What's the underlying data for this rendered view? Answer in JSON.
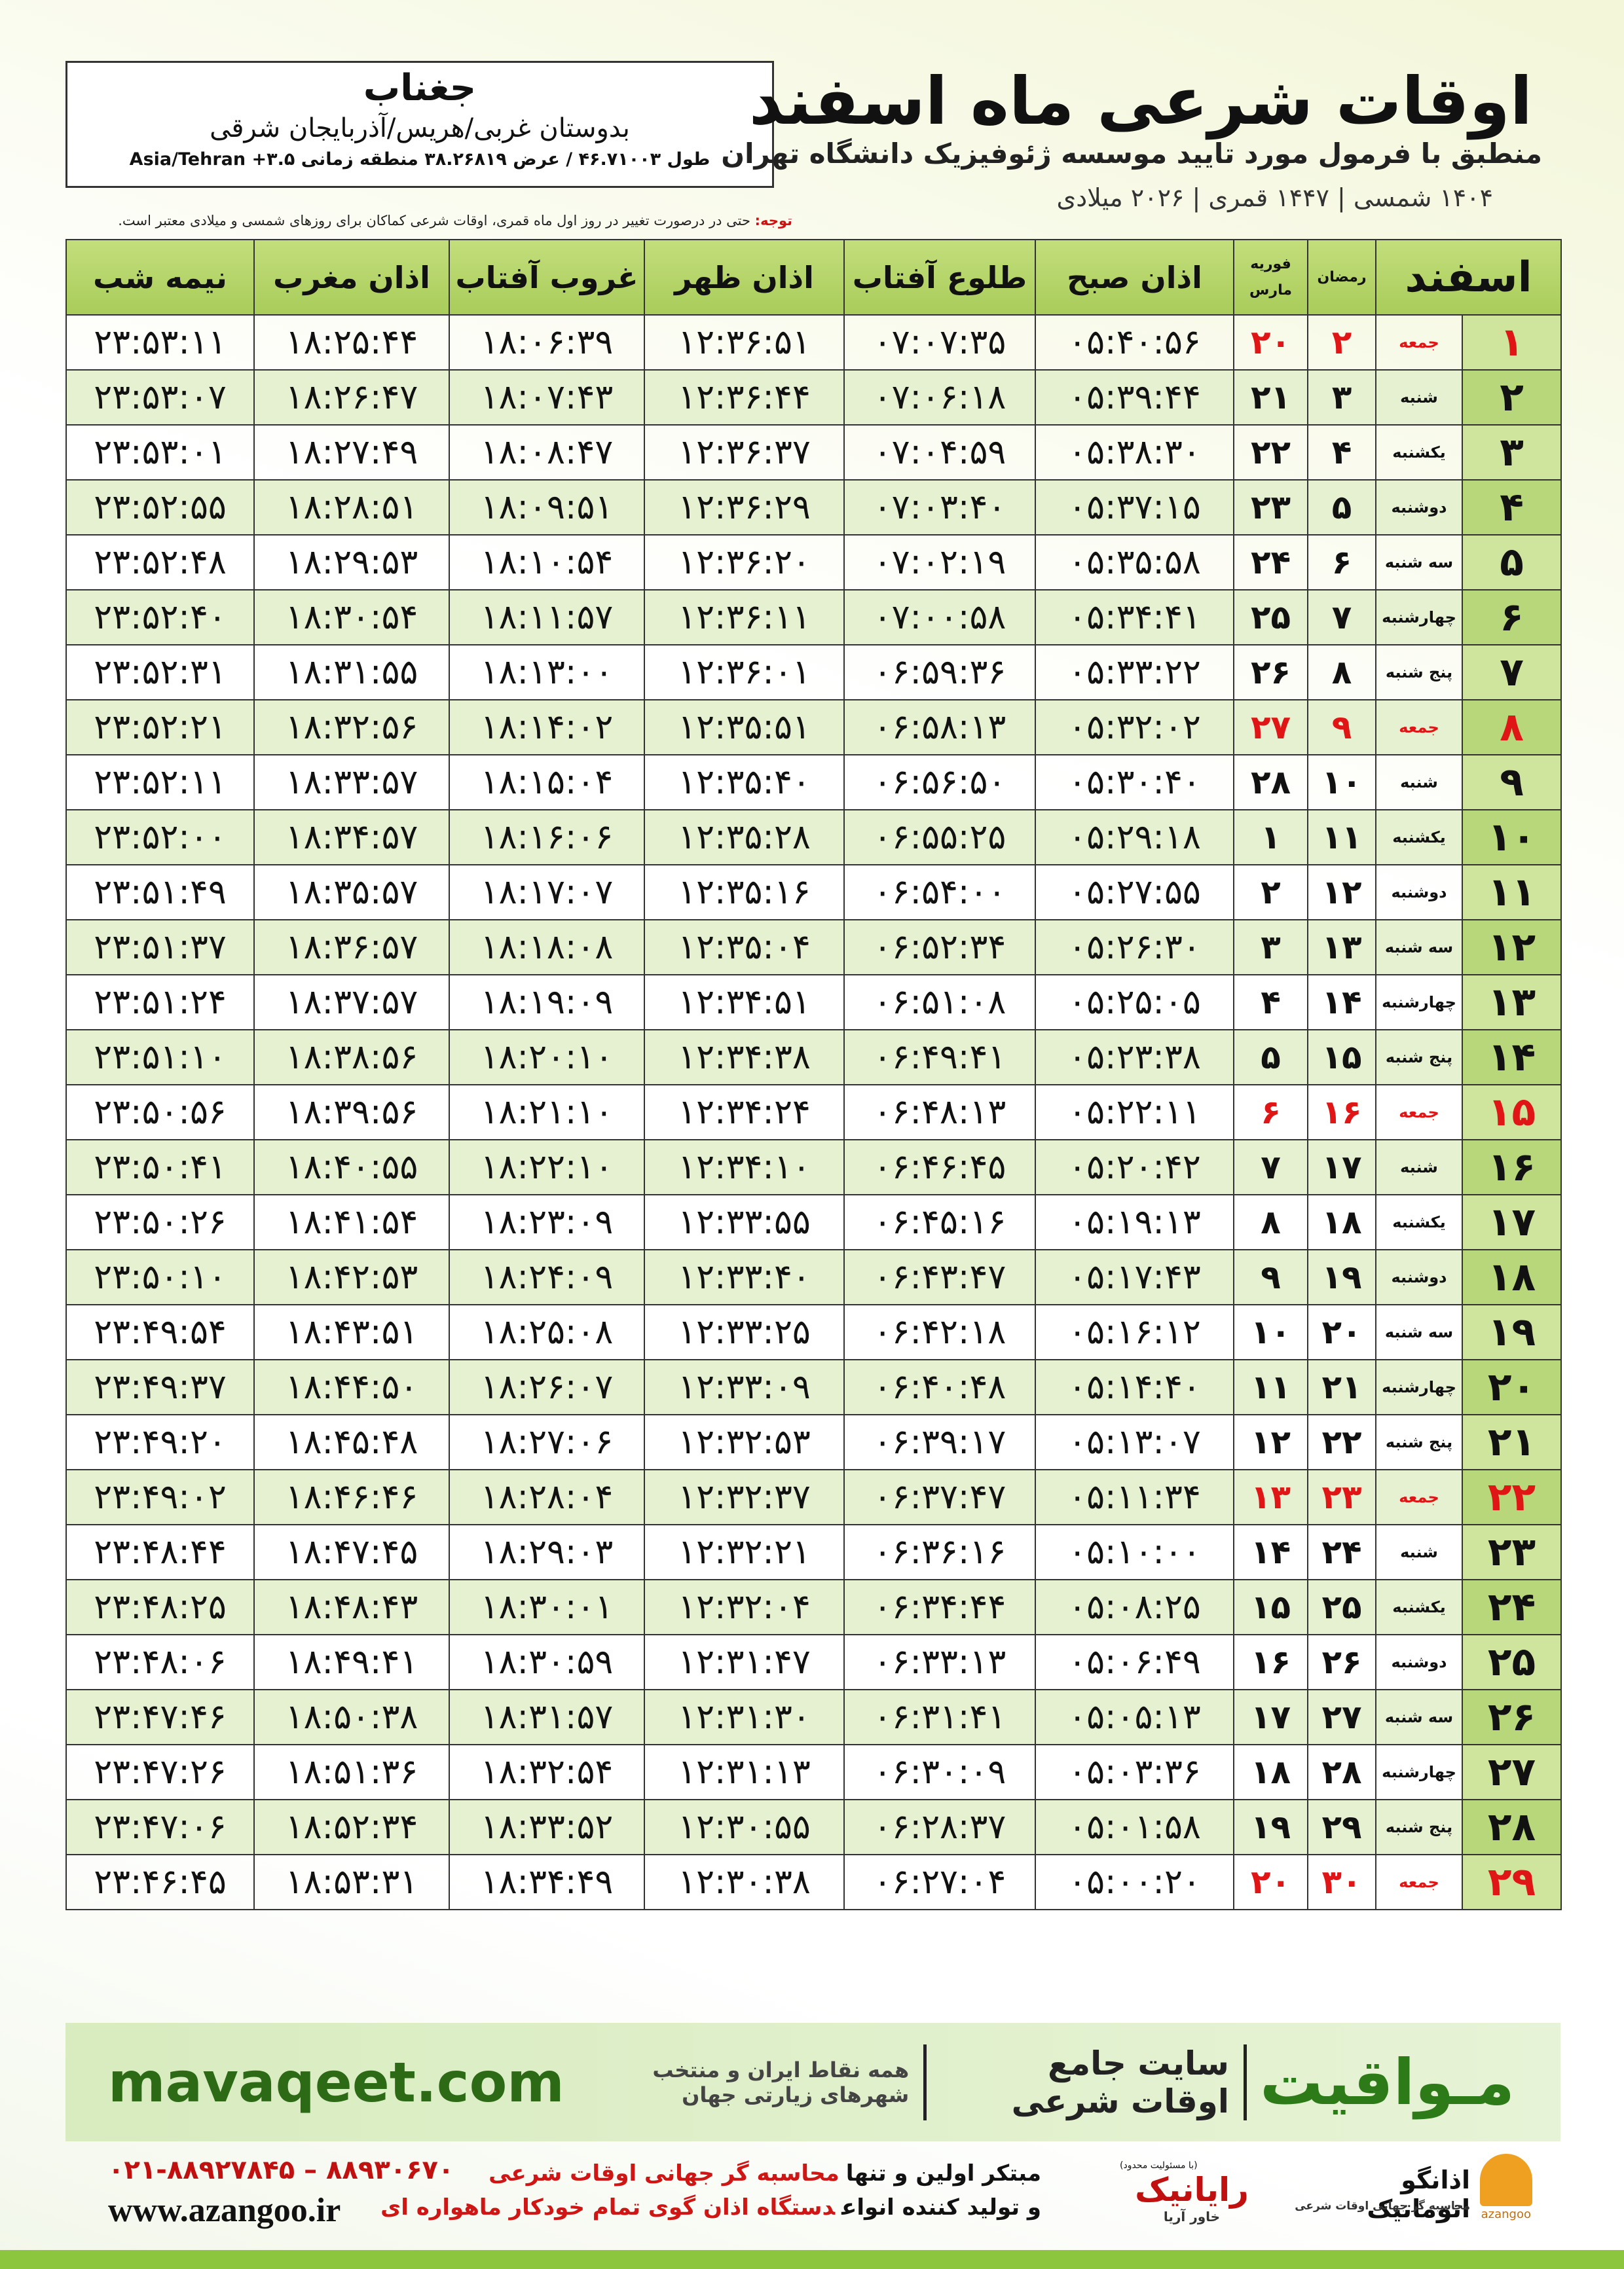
{
  "header": {
    "title": "اوقات شرعی ماه اسفند",
    "subtitle": "منطبق با فرمول مورد تایید موسسه ژئوفیزیک دانشگاه تهران",
    "dates": "۱۴۰۴ شمسی | ۱۴۴۷ قمری | ۲۰۲۶ میلادی",
    "city": "جغناب",
    "region": "بدوستان غربی/هریس/آذربایجان شرقی",
    "coords": "طول ۴۶.۷۱۰۰۳ / عرض ۳۸.۲۶۸۱۹ منطقه زمانی ۳.۵+ Asia/Tehran",
    "note_label": "توجه:",
    "note": "حتی در درصورت تغییر در روز اول ماه قمری، اوقات شرعی کماکان برای روزهای شمسی و میلادی معتبر است."
  },
  "table": {
    "columns": [
      "اسفند",
      "رمضان",
      "فوریه",
      "مارس",
      "اذان صبح",
      "طلوع آفتاب",
      "اذان ظهر",
      "غروب آفتاب",
      "اذان مغرب",
      "نیمه شب"
    ],
    "rows": [
      [
        "۱",
        "جمعه",
        "۲",
        "۲۰",
        "۰۵:۴۰:۵۶",
        "۰۷:۰۷:۳۵",
        "۱۲:۳۶:۵۱",
        "۱۸:۰۶:۳۹",
        "۱۸:۲۵:۴۴",
        "۲۳:۵۳:۱۱"
      ],
      [
        "۲",
        "شنبه",
        "۳",
        "۲۱",
        "۰۵:۳۹:۴۴",
        "۰۷:۰۶:۱۸",
        "۱۲:۳۶:۴۴",
        "۱۸:۰۷:۴۳",
        "۱۸:۲۶:۴۷",
        "۲۳:۵۳:۰۷"
      ],
      [
        "۳",
        "یکشنبه",
        "۴",
        "۲۲",
        "۰۵:۳۸:۳۰",
        "۰۷:۰۴:۵۹",
        "۱۲:۳۶:۳۷",
        "۱۸:۰۸:۴۷",
        "۱۸:۲۷:۴۹",
        "۲۳:۵۳:۰۱"
      ],
      [
        "۴",
        "دوشنبه",
        "۵",
        "۲۳",
        "۰۵:۳۷:۱۵",
        "۰۷:۰۳:۴۰",
        "۱۲:۳۶:۲۹",
        "۱۸:۰۹:۵۱",
        "۱۸:۲۸:۵۱",
        "۲۳:۵۲:۵۵"
      ],
      [
        "۵",
        "سه شنبه",
        "۶",
        "۲۴",
        "۰۵:۳۵:۵۸",
        "۰۷:۰۲:۱۹",
        "۱۲:۳۶:۲۰",
        "۱۸:۱۰:۵۴",
        "۱۸:۲۹:۵۳",
        "۲۳:۵۲:۴۸"
      ],
      [
        "۶",
        "چهارشنبه",
        "۷",
        "۲۵",
        "۰۵:۳۴:۴۱",
        "۰۷:۰۰:۵۸",
        "۱۲:۳۶:۱۱",
        "۱۸:۱۱:۵۷",
        "۱۸:۳۰:۵۴",
        "۲۳:۵۲:۴۰"
      ],
      [
        "۷",
        "پنج شنبه",
        "۸",
        "۲۶",
        "۰۵:۳۳:۲۲",
        "۰۶:۵۹:۳۶",
        "۱۲:۳۶:۰۱",
        "۱۸:۱۳:۰۰",
        "۱۸:۳۱:۵۵",
        "۲۳:۵۲:۳۱"
      ],
      [
        "۸",
        "جمعه",
        "۹",
        "۲۷",
        "۰۵:۳۲:۰۲",
        "۰۶:۵۸:۱۳",
        "۱۲:۳۵:۵۱",
        "۱۸:۱۴:۰۲",
        "۱۸:۳۲:۵۶",
        "۲۳:۵۲:۲۱"
      ],
      [
        "۹",
        "شنبه",
        "۱۰",
        "۲۸",
        "۰۵:۳۰:۴۰",
        "۰۶:۵۶:۵۰",
        "۱۲:۳۵:۴۰",
        "۱۸:۱۵:۰۴",
        "۱۸:۳۳:۵۷",
        "۲۳:۵۲:۱۱"
      ],
      [
        "۱۰",
        "یکشنبه",
        "۱۱",
        "۱",
        "۰۵:۲۹:۱۸",
        "۰۶:۵۵:۲۵",
        "۱۲:۳۵:۲۸",
        "۱۸:۱۶:۰۶",
        "۱۸:۳۴:۵۷",
        "۲۳:۵۲:۰۰"
      ],
      [
        "۱۱",
        "دوشنبه",
        "۱۲",
        "۲",
        "۰۵:۲۷:۵۵",
        "۰۶:۵۴:۰۰",
        "۱۲:۳۵:۱۶",
        "۱۸:۱۷:۰۷",
        "۱۸:۳۵:۵۷",
        "۲۳:۵۱:۴۹"
      ],
      [
        "۱۲",
        "سه شنبه",
        "۱۳",
        "۳",
        "۰۵:۲۶:۳۰",
        "۰۶:۵۲:۳۴",
        "۱۲:۳۵:۰۴",
        "۱۸:۱۸:۰۸",
        "۱۸:۳۶:۵۷",
        "۲۳:۵۱:۳۷"
      ],
      [
        "۱۳",
        "چهارشنبه",
        "۱۴",
        "۴",
        "۰۵:۲۵:۰۵",
        "۰۶:۵۱:۰۸",
        "۱۲:۳۴:۵۱",
        "۱۸:۱۹:۰۹",
        "۱۸:۳۷:۵۷",
        "۲۳:۵۱:۲۴"
      ],
      [
        "۱۴",
        "پنج شنبه",
        "۱۵",
        "۵",
        "۰۵:۲۳:۳۸",
        "۰۶:۴۹:۴۱",
        "۱۲:۳۴:۳۸",
        "۱۸:۲۰:۱۰",
        "۱۸:۳۸:۵۶",
        "۲۳:۵۱:۱۰"
      ],
      [
        "۱۵",
        "جمعه",
        "۱۶",
        "۶",
        "۰۵:۲۲:۱۱",
        "۰۶:۴۸:۱۳",
        "۱۲:۳۴:۲۴",
        "۱۸:۲۱:۱۰",
        "۱۸:۳۹:۵۶",
        "۲۳:۵۰:۵۶"
      ],
      [
        "۱۶",
        "شنبه",
        "۱۷",
        "۷",
        "۰۵:۲۰:۴۲",
        "۰۶:۴۶:۴۵",
        "۱۲:۳۴:۱۰",
        "۱۸:۲۲:۱۰",
        "۱۸:۴۰:۵۵",
        "۲۳:۵۰:۴۱"
      ],
      [
        "۱۷",
        "یکشنبه",
        "۱۸",
        "۸",
        "۰۵:۱۹:۱۳",
        "۰۶:۴۵:۱۶",
        "۱۲:۳۳:۵۵",
        "۱۸:۲۳:۰۹",
        "۱۸:۴۱:۵۴",
        "۲۳:۵۰:۲۶"
      ],
      [
        "۱۸",
        "دوشنبه",
        "۱۹",
        "۹",
        "۰۵:۱۷:۴۳",
        "۰۶:۴۳:۴۷",
        "۱۲:۳۳:۴۰",
        "۱۸:۲۴:۰۹",
        "۱۸:۴۲:۵۳",
        "۲۳:۵۰:۱۰"
      ],
      [
        "۱۹",
        "سه شنبه",
        "۲۰",
        "۱۰",
        "۰۵:۱۶:۱۲",
        "۰۶:۴۲:۱۸",
        "۱۲:۳۳:۲۵",
        "۱۸:۲۵:۰۸",
        "۱۸:۴۳:۵۱",
        "۲۳:۴۹:۵۴"
      ],
      [
        "۲۰",
        "چهارشنبه",
        "۲۱",
        "۱۱",
        "۰۵:۱۴:۴۰",
        "۰۶:۴۰:۴۸",
        "۱۲:۳۳:۰۹",
        "۱۸:۲۶:۰۷",
        "۱۸:۴۴:۵۰",
        "۲۳:۴۹:۳۷"
      ],
      [
        "۲۱",
        "پنج شنبه",
        "۲۲",
        "۱۲",
        "۰۵:۱۳:۰۷",
        "۰۶:۳۹:۱۷",
        "۱۲:۳۲:۵۳",
        "۱۸:۲۷:۰۶",
        "۱۸:۴۵:۴۸",
        "۲۳:۴۹:۲۰"
      ],
      [
        "۲۲",
        "جمعه",
        "۲۳",
        "۱۳",
        "۰۵:۱۱:۳۴",
        "۰۶:۳۷:۴۷",
        "۱۲:۳۲:۳۷",
        "۱۸:۲۸:۰۴",
        "۱۸:۴۶:۴۶",
        "۲۳:۴۹:۰۲"
      ],
      [
        "۲۳",
        "شنبه",
        "۲۴",
        "۱۴",
        "۰۵:۱۰:۰۰",
        "۰۶:۳۶:۱۶",
        "۱۲:۳۲:۲۱",
        "۱۸:۲۹:۰۳",
        "۱۸:۴۷:۴۵",
        "۲۳:۴۸:۴۴"
      ],
      [
        "۲۴",
        "یکشنبه",
        "۲۵",
        "۱۵",
        "۰۵:۰۸:۲۵",
        "۰۶:۳۴:۴۴",
        "۱۲:۳۲:۰۴",
        "۱۸:۳۰:۰۱",
        "۱۸:۴۸:۴۳",
        "۲۳:۴۸:۲۵"
      ],
      [
        "۲۵",
        "دوشنبه",
        "۲۶",
        "۱۶",
        "۰۵:۰۶:۴۹",
        "۰۶:۳۳:۱۳",
        "۱۲:۳۱:۴۷",
        "۱۸:۳۰:۵۹",
        "۱۸:۴۹:۴۱",
        "۲۳:۴۸:۰۶"
      ],
      [
        "۲۶",
        "سه شنبه",
        "۲۷",
        "۱۷",
        "۰۵:۰۵:۱۳",
        "۰۶:۳۱:۴۱",
        "۱۲:۳۱:۳۰",
        "۱۸:۳۱:۵۷",
        "۱۸:۵۰:۳۸",
        "۲۳:۴۷:۴۶"
      ],
      [
        "۲۷",
        "چهارشنبه",
        "۲۸",
        "۱۸",
        "۰۵:۰۳:۳۶",
        "۰۶:۳۰:۰۹",
        "۱۲:۳۱:۱۳",
        "۱۸:۳۲:۵۴",
        "۱۸:۵۱:۳۶",
        "۲۳:۴۷:۲۶"
      ],
      [
        "۲۸",
        "پنج شنبه",
        "۲۹",
        "۱۹",
        "۰۵:۰۱:۵۸",
        "۰۶:۲۸:۳۷",
        "۱۲:۳۰:۵۵",
        "۱۸:۳۳:۵۲",
        "۱۸:۵۲:۳۴",
        "۲۳:۴۷:۰۶"
      ],
      [
        "۲۹",
        "جمعه",
        "۳۰",
        "۲۰",
        "۰۵:۰۰:۲۰",
        "۰۶:۲۷:۰۴",
        "۱۲:۳۰:۳۸",
        "۱۸:۳۴:۴۹",
        "۱۸:۵۳:۳۱",
        "۲۳:۴۶:۴۵"
      ]
    ]
  },
  "footer": {
    "brand": "مـواقیت",
    "tagline": "سایت جامع اوقات شرعی",
    "coverage": "همه نقاط ایران و منتخب شهرهای زیارتی جهان",
    "site": "mavaqeet.com"
  },
  "bottom": {
    "phones": "۰۲۱-۸۸۹۲۷۸۴۵ – ۸۸۹۳۰۶۷۰",
    "web": "www.azangoo.ir",
    "line1": [
      "مبتکر اولین و تنها",
      "محاسبه گر جهانی اوقات شرعی"
    ],
    "line2": [
      "و تولید کننده انواع",
      "دستگاه اذان گوی تمام خودکار ماهواره ای"
    ],
    "logo1": {
      "name": "رایانیک",
      "sub": "خاور آریا",
      "note": "(با مسئولیت محدود)"
    },
    "logo2": {
      "name": "اذانگو اتوماتیک",
      "sub": "محاسبه گر جهانی اوقات شرعی",
      "mark": "azangoo"
    }
  }
}
